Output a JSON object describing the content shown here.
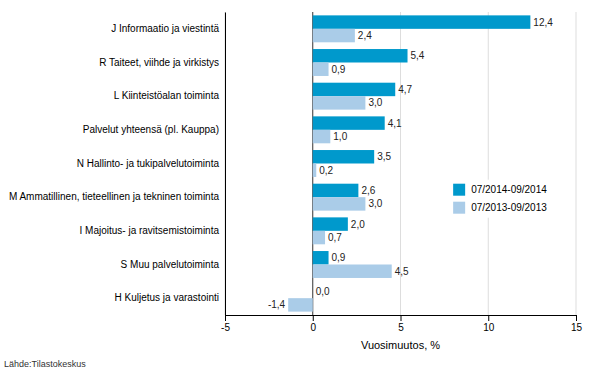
{
  "chart_data": {
    "type": "bar",
    "orientation": "horizontal",
    "categories": [
      "J Informaatio ja viestintä",
      "R Taiteet, viihde ja virkistys",
      "L Kiinteistöalan toiminta",
      "Palvelut yhteensä (pl. Kauppa)",
      "N Hallinto- ja tukipalvelutoiminta",
      "M Ammatillinen, tieteellinen ja tekninen toiminta",
      "I Majoitus- ja ravitsemistoiminta",
      "S Muu palvelutoiminta",
      "H Kuljetus ja varastointi"
    ],
    "series": [
      {
        "name": "07/2014-09/2014",
        "color": "#0099cc",
        "values": [
          12.4,
          5.4,
          4.7,
          4.1,
          3.5,
          2.6,
          2.0,
          0.9,
          0.0
        ],
        "value_labels": [
          "12,4",
          "5,4",
          "4,7",
          "4,1",
          "3,5",
          "2,6",
          "2,0",
          "0,9",
          "0,0"
        ]
      },
      {
        "name": "07/2013-09/2013",
        "color": "#aacce8",
        "values": [
          2.4,
          0.9,
          3.0,
          1.0,
          0.2,
          3.0,
          0.7,
          4.5,
          -1.4
        ],
        "value_labels": [
          "2,4",
          "0,9",
          "3,0",
          "1,0",
          "0,2",
          "3,0",
          "0,7",
          "4,5",
          "-1,4"
        ]
      }
    ],
    "xlabel": "Vuosimuutos, %",
    "xlim": [
      -5,
      15
    ],
    "xticks": [
      -5,
      0,
      5,
      10,
      15
    ],
    "grid": true,
    "legend": "right",
    "data_labels": true,
    "annotations": [
      "Lähde:Tilastokeskus"
    ]
  }
}
